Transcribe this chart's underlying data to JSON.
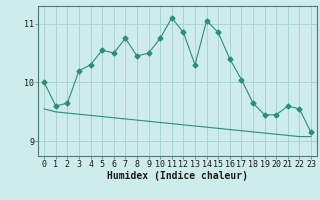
{
  "xlabel": "Humidex (Indice chaleur)",
  "x": [
    0,
    1,
    2,
    3,
    4,
    5,
    6,
    7,
    8,
    9,
    10,
    11,
    12,
    13,
    14,
    15,
    16,
    17,
    18,
    19,
    20,
    21,
    22,
    23
  ],
  "y_main": [
    10.0,
    9.6,
    9.65,
    10.2,
    10.3,
    10.55,
    10.5,
    10.75,
    10.45,
    10.5,
    10.75,
    11.1,
    10.85,
    10.3,
    11.05,
    10.85,
    10.4,
    10.05,
    9.65,
    9.45,
    9.45,
    9.6,
    9.55,
    9.15
  ],
  "y_smooth": [
    9.55,
    9.5,
    9.48,
    9.46,
    9.44,
    9.42,
    9.4,
    9.38,
    9.36,
    9.34,
    9.32,
    9.3,
    9.28,
    9.26,
    9.24,
    9.22,
    9.2,
    9.18,
    9.16,
    9.14,
    9.12,
    9.1,
    9.08,
    9.08
  ],
  "line_color": "#2d8c7a",
  "background_color": "#ceecea",
  "grid_color": "#a8d4d0",
  "ylim": [
    8.75,
    11.3
  ],
  "yticks": [
    9,
    10,
    11
  ],
  "marker": "D",
  "marker_size": 2.5
}
